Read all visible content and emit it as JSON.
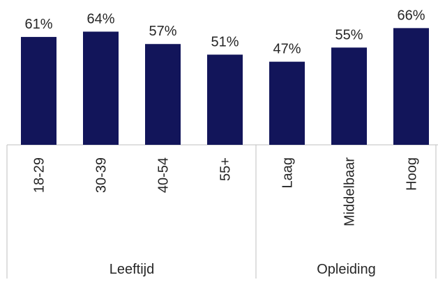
{
  "chart_data": {
    "type": "bar",
    "groups": [
      {
        "name": "Leeftijd",
        "categories": [
          "18-29",
          "30-39",
          "40-54",
          "55+"
        ]
      },
      {
        "name": "Opleiding",
        "categories": [
          "Laag",
          "Middelbaar",
          "Hoog"
        ]
      }
    ],
    "values": [
      61,
      64,
      57,
      51,
      47,
      55,
      66
    ],
    "value_labels": [
      "61%",
      "64%",
      "57%",
      "51%",
      "47%",
      "55%",
      "66%"
    ],
    "color": "#12155a"
  }
}
